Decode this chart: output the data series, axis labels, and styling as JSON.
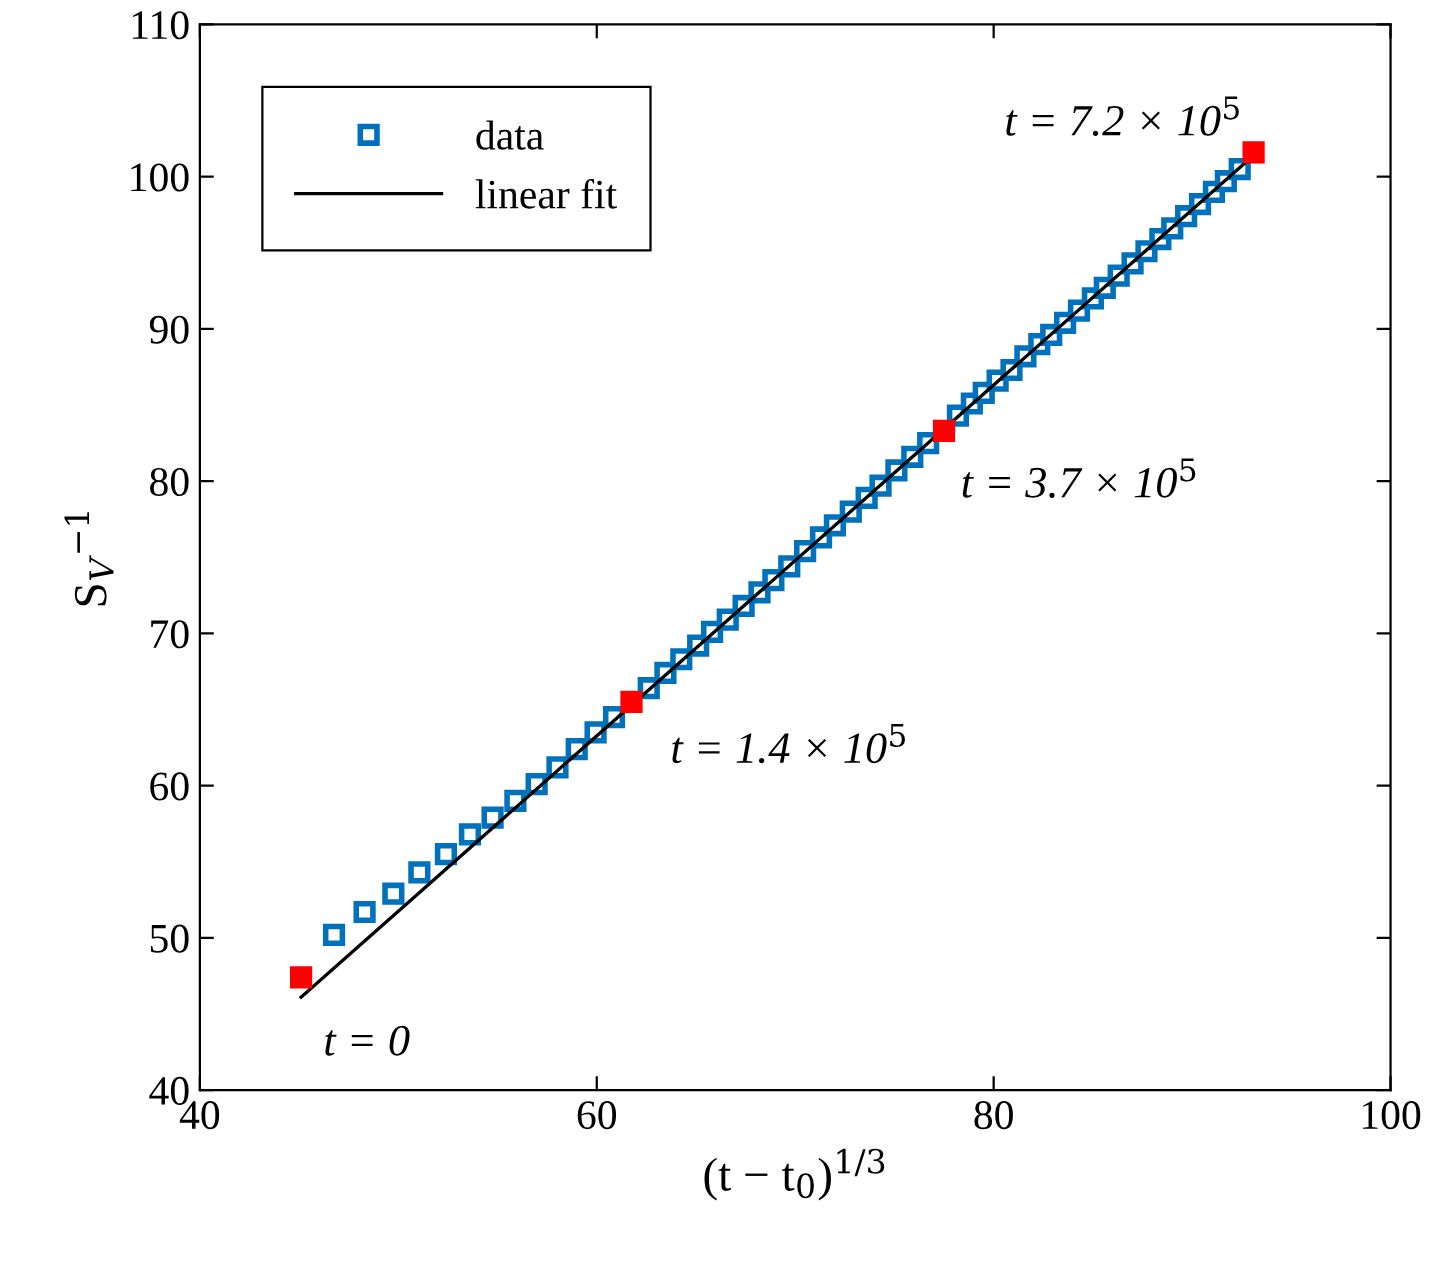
{
  "chart_data": {
    "type": "scatter",
    "xlabel": "(t − t$_{0}$)$^{1/3}$",
    "ylabel": "S$_{V}$$^{−1}$",
    "xlim": [
      40,
      100
    ],
    "xticks": [
      40,
      60,
      80,
      100
    ],
    "ylim": [
      40,
      110
    ],
    "yticks": [
      40,
      50,
      60,
      70,
      80,
      90,
      100,
      110
    ],
    "grid": false,
    "legend": "top left",
    "marker": "square",
    "series": [
      {
        "name": "data",
        "color": "#0072bd",
        "x": [
          46.76,
          48.3,
          49.75,
          51.06,
          52.4,
          53.61,
          54.75,
          55.9,
          56.97,
          58.02,
          58.99,
          59.94,
          60.87,
          62.62,
          63.46,
          64.26,
          65.11,
          65.81,
          66.6,
          67.4,
          68.2,
          68.9,
          69.7,
          70.5,
          71.3,
          72.0,
          72.8,
          73.6,
          74.3,
          75.1,
          75.9,
          76.7,
          78.2,
          78.9,
          79.5,
          80.2,
          80.9,
          81.6,
          82.3,
          82.9,
          83.6,
          84.3,
          85.0,
          85.6,
          86.3,
          87.0,
          87.7,
          88.4,
          89.0,
          89.7,
          90.4,
          91.1,
          91.7,
          92.4
        ],
        "values": [
          50.2,
          51.7,
          52.9,
          54.3,
          55.5,
          56.8,
          57.9,
          59.0,
          60.1,
          61.2,
          62.4,
          63.5,
          64.5,
          66.4,
          67.4,
          68.3,
          69.2,
          70.1,
          70.9,
          71.8,
          72.7,
          73.5,
          74.4,
          75.4,
          76.3,
          77.1,
          78.0,
          78.9,
          79.7,
          80.7,
          81.6,
          82.5,
          84.3,
          85.1,
          85.8,
          86.6,
          87.3,
          88.2,
          89.0,
          89.6,
          90.4,
          91.2,
          92.0,
          92.7,
          93.5,
          94.3,
          95.1,
          95.9,
          96.6,
          97.4,
          98.2,
          99.0,
          99.7,
          100.5
        ]
      },
      {
        "color": "#ff0000",
        "x": [
          45.1,
          61.75,
          77.5,
          93.1
        ],
        "values": [
          47.4,
          65.5,
          83.3,
          101.6
        ]
      },
      {
        "name": "linear fit",
        "type": "line",
        "color": "#000000",
        "marker": "none",
        "line_style": "solid",
        "x": [
          45.1,
          93.1
        ],
        "values": [
          46.1,
          101.4
        ]
      }
    ],
    "annotations": [
      {
        "text": "t = 0",
        "x": 45.1,
        "y": 47.4
      },
      {
        "text": "t = 1.4 × 10$^{5}$",
        "x": 61.75,
        "y": 65.5
      },
      {
        "text": "t = 3.7 × 10$^{5}$",
        "x": 77.5,
        "y": 83.3
      },
      {
        "text": "t = 7.2 × 10$^{5}$",
        "x": 93.1,
        "y": 101.6
      }
    ]
  }
}
